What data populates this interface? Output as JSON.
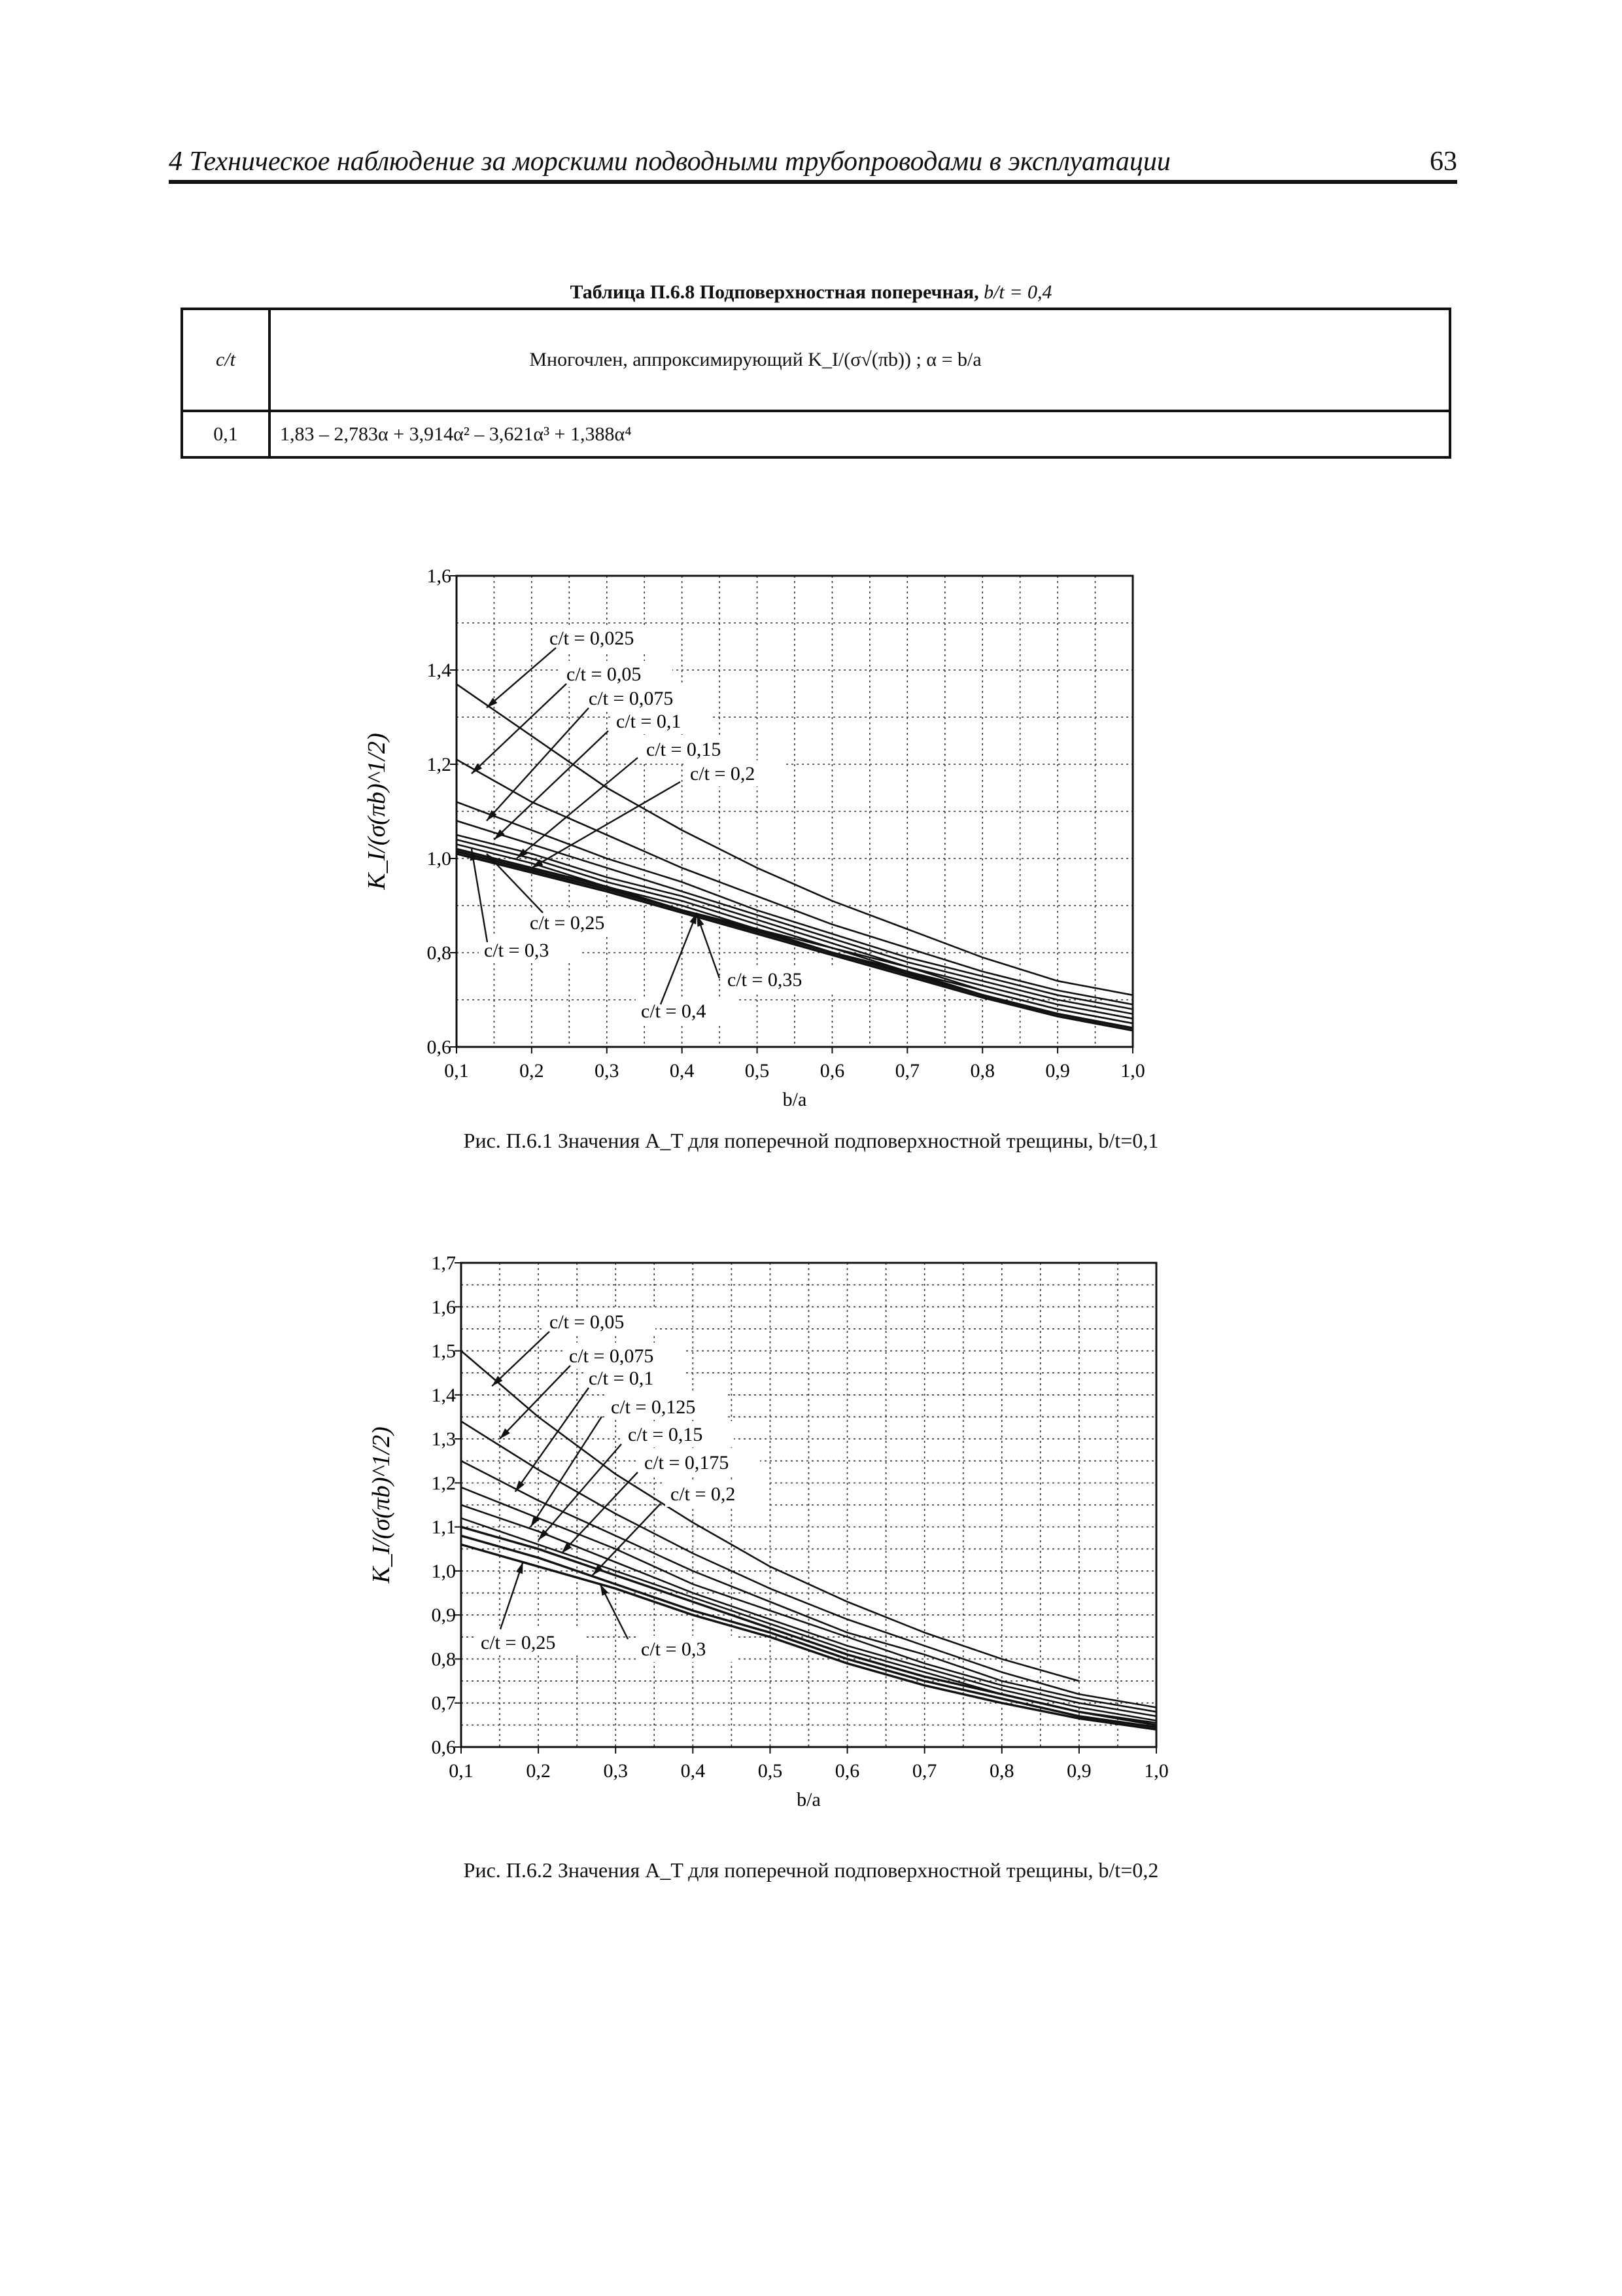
{
  "header": {
    "title": "4 Техническое наблюдение за морскими подводными трубопроводами в эксплуатации",
    "page_number": "63"
  },
  "table": {
    "caption_prefix": "Таблица П.6.8 Подповерхностная поперечная,",
    "caption_suffix": "b/t = 0,4",
    "col1_header": "c/t",
    "col2_header": "Многочлен, аппроксимирующий K_I/(σ√(πb)) ;   α = b/a",
    "rows": [
      {
        "ct": "0,1",
        "polynomial": "1,83 – 2,783α + 3,914α² – 3,621α³ + 1,388α⁴"
      }
    ]
  },
  "figures": [
    {
      "caption": "Рис. П.6.1 Значения A_T для поперечной подповерхностной трещины, b/t=0,1"
    },
    {
      "caption": "Рис. П.6.2 Значения A_T для поперечной подповерхностной трещины, b/t=0,2"
    }
  ],
  "chart_data": [
    {
      "type": "line",
      "xlabel": "b/a",
      "ylabel": "K_I/(σ(πb)^1/2)",
      "xlim": [
        0.1,
        1.0
      ],
      "ylim": [
        0.6,
        1.6
      ],
      "xticks": [
        "0,1",
        "0,2",
        "0,3",
        "0,4",
        "0,5",
        "0,6",
        "0,7",
        "0,8",
        "0,9",
        "1,0"
      ],
      "yticks": [
        "0,6",
        "0,8",
        "1,0",
        "1,2",
        "1,4",
        "1,6"
      ],
      "grid": true,
      "x": [
        0.1,
        0.2,
        0.3,
        0.4,
        0.5,
        0.6,
        0.7,
        0.8,
        0.9,
        1.0
      ],
      "series": [
        {
          "name": "c/t = 0,025",
          "values": [
            1.37,
            1.26,
            1.15,
            1.06,
            0.98,
            0.91,
            0.85,
            0.79,
            0.74,
            0.71
          ]
        },
        {
          "name": "c/t = 0,05",
          "values": [
            1.21,
            1.12,
            1.05,
            0.98,
            0.92,
            0.86,
            0.81,
            0.76,
            0.72,
            0.69
          ]
        },
        {
          "name": "c/t = 0,075",
          "values": [
            1.12,
            1.06,
            1.0,
            0.95,
            0.89,
            0.84,
            0.79,
            0.75,
            0.71,
            0.68
          ]
        },
        {
          "name": "c/t = 0,1",
          "values": [
            1.08,
            1.03,
            0.98,
            0.93,
            0.88,
            0.83,
            0.78,
            0.74,
            0.7,
            0.67
          ]
        },
        {
          "name": "c/t = 0,15",
          "values": [
            1.05,
            1.01,
            0.96,
            0.92,
            0.87,
            0.82,
            0.77,
            0.73,
            0.69,
            0.66
          ]
        },
        {
          "name": "c/t = 0,2",
          "values": [
            1.04,
            1.0,
            0.95,
            0.91,
            0.86,
            0.81,
            0.77,
            0.72,
            0.68,
            0.65
          ]
        },
        {
          "name": "c/t = 0,25",
          "values": [
            1.03,
            0.99,
            0.94,
            0.9,
            0.85,
            0.81,
            0.76,
            0.72,
            0.68,
            0.65
          ]
        },
        {
          "name": "c/t = 0,3",
          "values": [
            1.02,
            0.98,
            0.94,
            0.89,
            0.85,
            0.8,
            0.76,
            0.71,
            0.67,
            0.64
          ]
        },
        {
          "name": "c/t = 0,35",
          "values": [
            1.015,
            0.975,
            0.935,
            0.89,
            0.845,
            0.8,
            0.755,
            0.71,
            0.67,
            0.64
          ]
        },
        {
          "name": "c/t = 0,4",
          "values": [
            1.01,
            0.97,
            0.93,
            0.885,
            0.84,
            0.795,
            0.75,
            0.705,
            0.665,
            0.635
          ]
        }
      ]
    },
    {
      "type": "line",
      "xlabel": "b/a",
      "ylabel": "K_I/(σ(πb)^1/2)",
      "xlim": [
        0.1,
        1.0
      ],
      "ylim": [
        0.6,
        1.7
      ],
      "xticks": [
        "0,1",
        "0,2",
        "0,3",
        "0,4",
        "0,5",
        "0,6",
        "0,7",
        "0,8",
        "0,9",
        "1,0"
      ],
      "yticks": [
        "0,6",
        "0,7",
        "0,8",
        "0,9",
        "1,0",
        "1,1",
        "1,2",
        "1,3",
        "1,4",
        "1,5",
        "1,6",
        "1,7"
      ],
      "grid": true,
      "x": [
        0.1,
        0.2,
        0.3,
        0.4,
        0.5,
        0.6,
        0.7,
        0.8,
        0.9,
        1.0
      ],
      "series": [
        {
          "name": "c/t = 0,05",
          "values": [
            1.5,
            1.35,
            1.22,
            1.11,
            1.01,
            0.93,
            0.86,
            0.8,
            0.75,
            null
          ]
        },
        {
          "name": "c/t = 0,075",
          "values": [
            1.34,
            1.23,
            1.13,
            1.04,
            0.96,
            0.89,
            0.83,
            0.77,
            0.72,
            0.69
          ]
        },
        {
          "name": "c/t = 0,1",
          "values": [
            1.25,
            1.16,
            1.08,
            1.0,
            0.93,
            0.86,
            0.81,
            0.75,
            0.71,
            0.68
          ]
        },
        {
          "name": "c/t = 0,125",
          "values": [
            1.19,
            1.12,
            1.05,
            0.97,
            0.91,
            0.85,
            0.79,
            0.74,
            0.7,
            0.67
          ]
        },
        {
          "name": "c/t = 0,15",
          "values": [
            1.15,
            1.09,
            1.02,
            0.95,
            0.89,
            0.83,
            0.78,
            0.73,
            0.69,
            0.66
          ]
        },
        {
          "name": "c/t = 0,175",
          "values": [
            1.12,
            1.06,
            1.0,
            0.94,
            0.88,
            0.82,
            0.77,
            0.72,
            0.68,
            0.655
          ]
        },
        {
          "name": "c/t = 0,2",
          "values": [
            1.1,
            1.05,
            0.99,
            0.93,
            0.87,
            0.81,
            0.76,
            0.72,
            0.68,
            0.65
          ]
        },
        {
          "name": "c/t = 0,25",
          "values": [
            1.08,
            1.03,
            0.97,
            0.91,
            0.86,
            0.8,
            0.75,
            0.71,
            0.67,
            0.645
          ]
        },
        {
          "name": "c/t = 0,3",
          "values": [
            1.06,
            1.01,
            0.96,
            0.9,
            0.85,
            0.79,
            0.74,
            0.7,
            0.665,
            0.64
          ]
        }
      ]
    }
  ]
}
